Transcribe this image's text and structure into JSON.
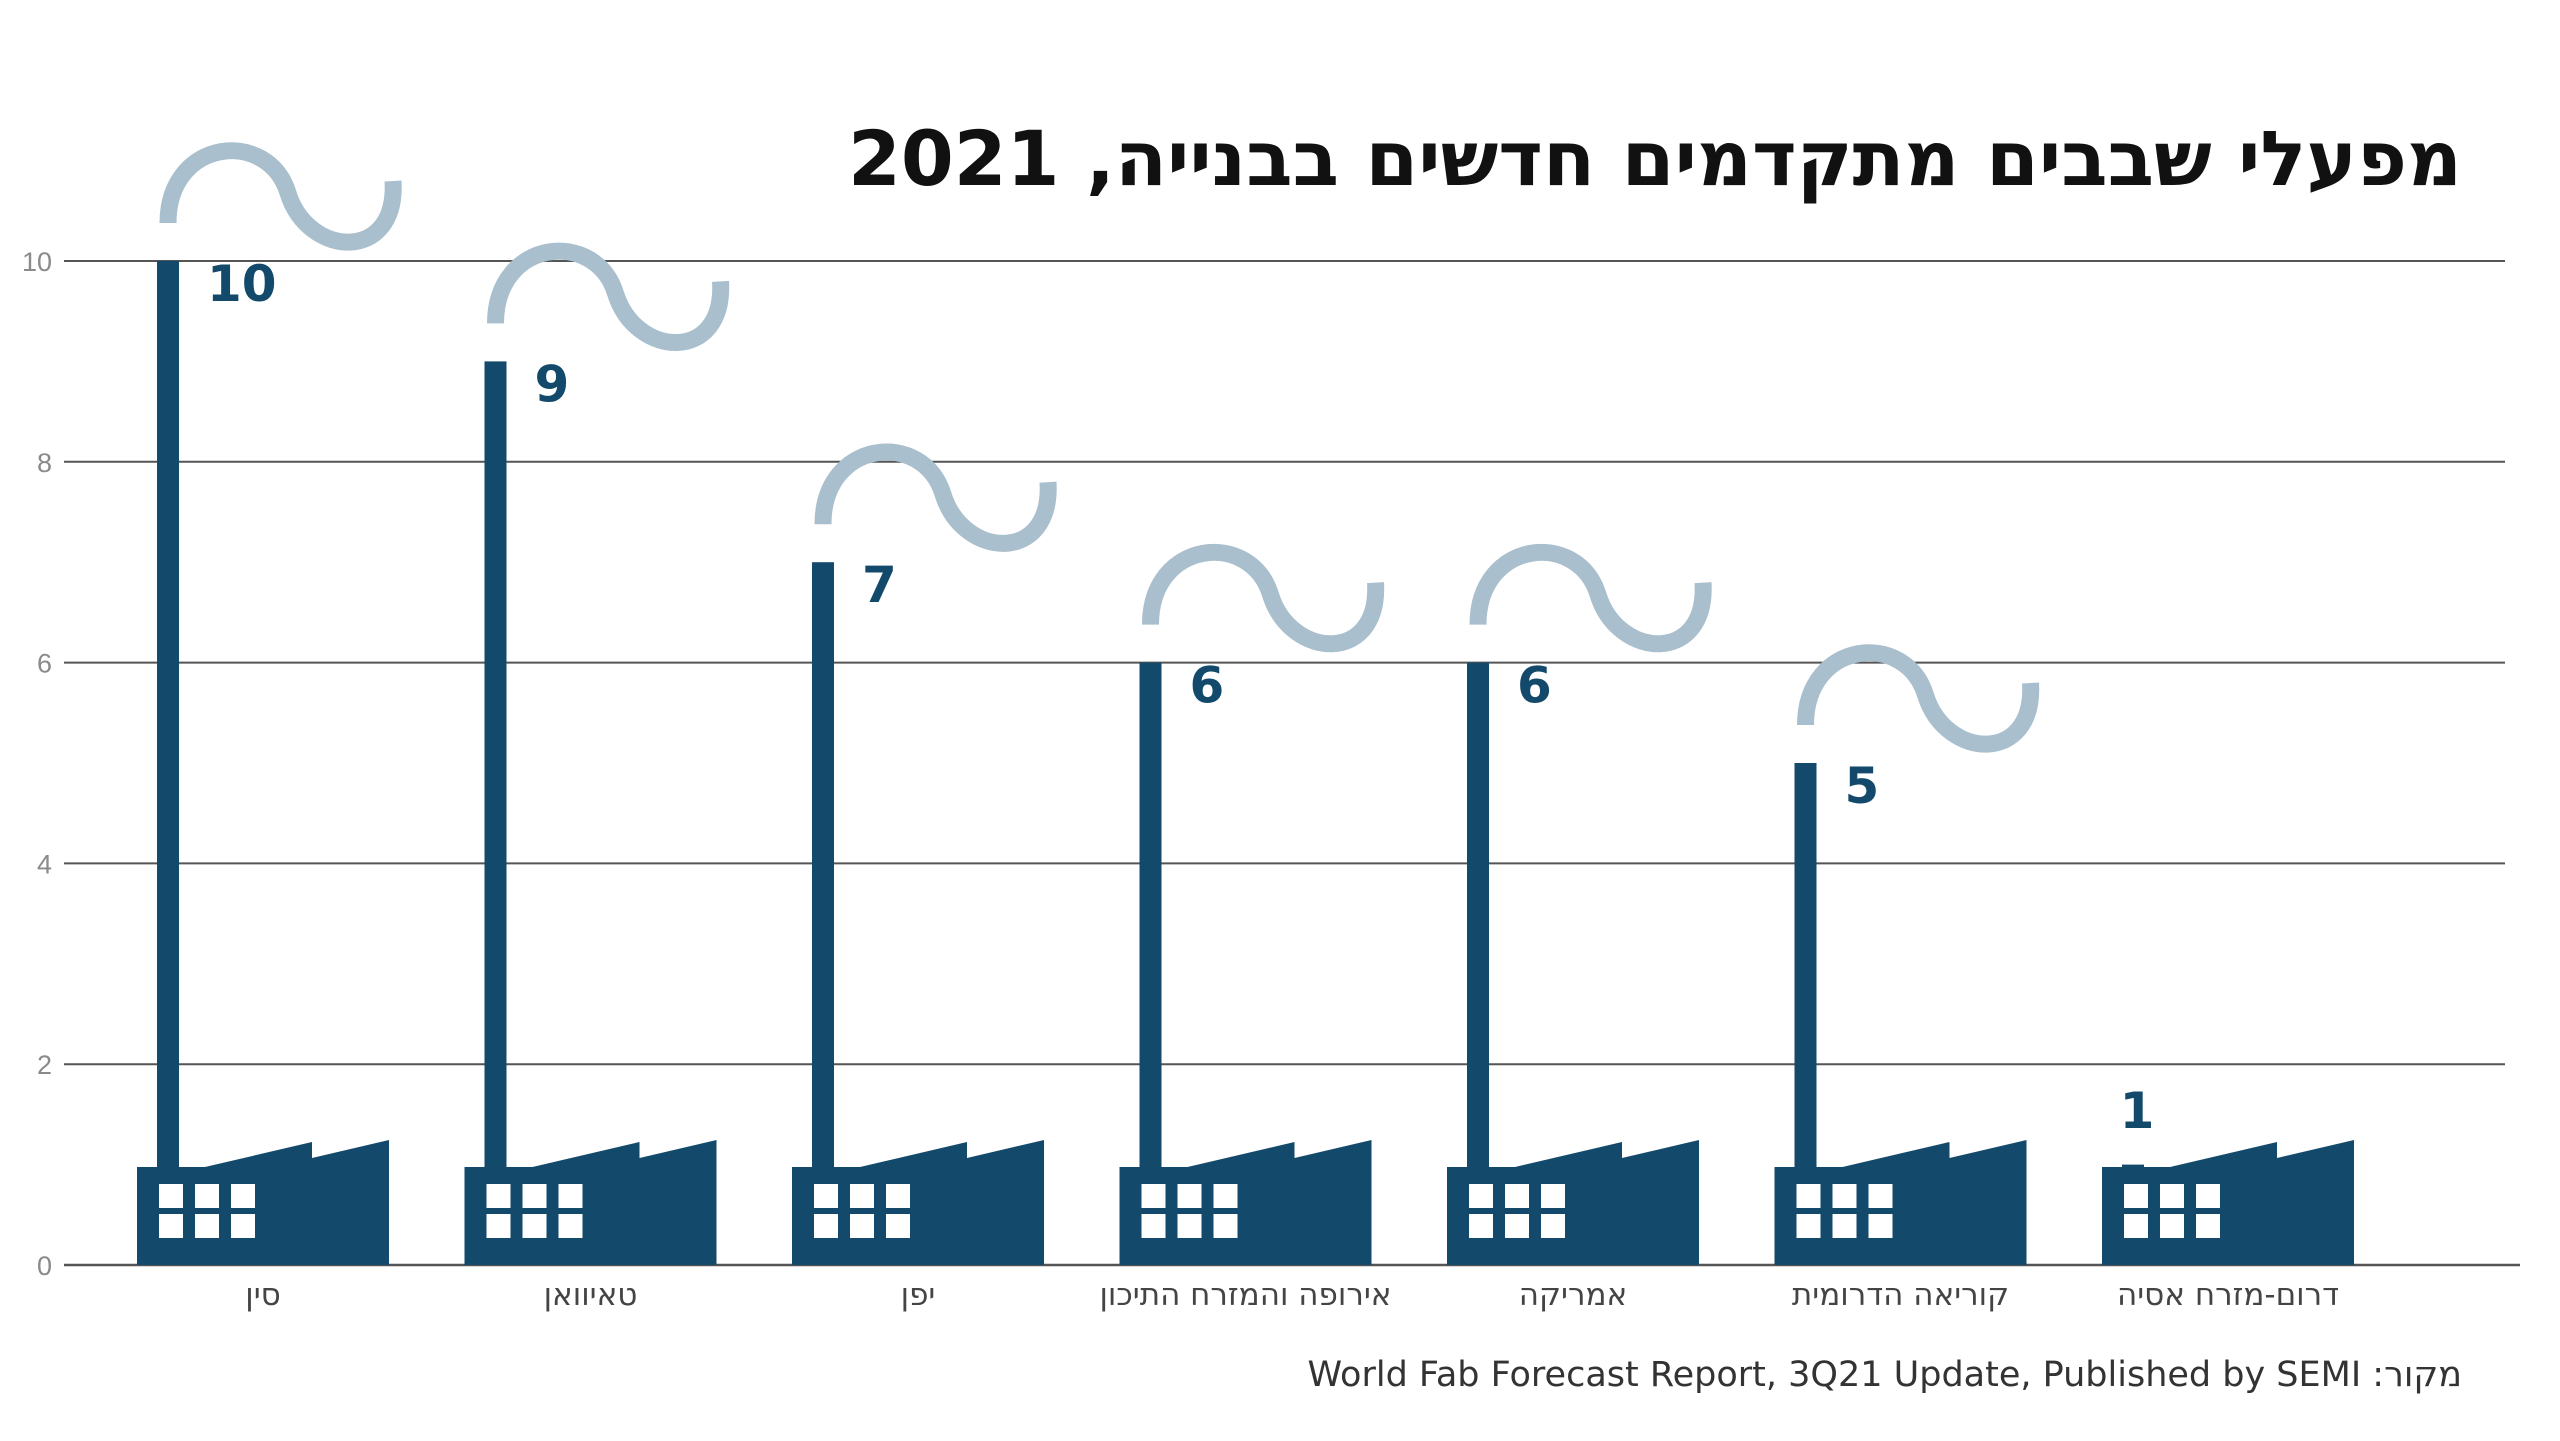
{
  "chart_data": {
    "type": "bar",
    "title": "מפעלי שבבים מתקדמים חדשים בבנייה, 2021",
    "categories": [
      "סין",
      "טאיוואן",
      "יפן",
      "אירופה והמזרח התיכון",
      "אמריקה",
      "קוריאה הדרומית",
      "דרום-מזרח אסיה"
    ],
    "values": [
      10,
      9,
      7,
      6,
      6,
      5,
      1
    ],
    "value_labels": [
      "10",
      "9",
      "7",
      "6",
      "6",
      "5",
      "1"
    ],
    "ylim": [
      0,
      10
    ],
    "yticks": [
      "0",
      "2",
      "4",
      "6",
      "8",
      "10"
    ],
    "ytick_values": [
      0,
      2,
      4,
      6,
      8,
      10
    ],
    "grid": true,
    "source": "מקור: World Fab Forecast Report, 3Q21 Update, Published by SEMI",
    "colors": {
      "factory": "#134a6b",
      "smoke": "#a9bfcd",
      "window": "#ffffff",
      "label": "#134a6b"
    },
    "icons": {
      "bar": "factory-chimney-icon",
      "smoke": "smoke-wave-icon"
    }
  }
}
